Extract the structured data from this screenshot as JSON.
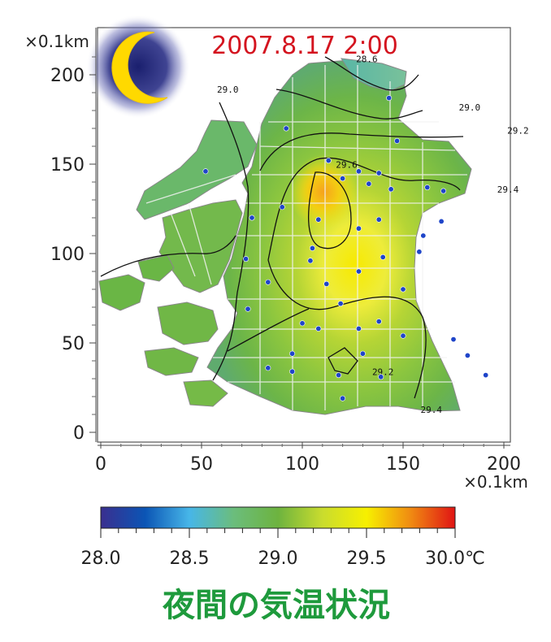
{
  "chart_data": {
    "type": "heatmap",
    "timestamp": "2007.8.17 2:00",
    "caption": "夜間の気温状況",
    "x_unit": "×0.1km",
    "y_unit": "×0.1km",
    "xlim": [
      0,
      200
    ],
    "ylim": [
      0,
      220
    ],
    "x_ticks": [
      0,
      50,
      100,
      150,
      200
    ],
    "y_ticks": [
      0,
      50,
      100,
      150,
      200
    ],
    "colorbar": {
      "min": 28.0,
      "max": 30.0,
      "unit": "℃",
      "ticks": [
        "28.0",
        "28.5",
        "29.0",
        "29.5",
        "30.0"
      ],
      "colors": [
        "#3a2f8f",
        "#0b55b5",
        "#47b6e8",
        "#6bbd7c",
        "#6db33f",
        "#c9dc2e",
        "#f7f000",
        "#f08a12",
        "#e01414"
      ]
    },
    "contours": [
      {
        "label": "28.6",
        "value": 28.6,
        "label_at": [
          132,
          207
        ]
      },
      {
        "label": "29.0",
        "value": 29.0,
        "label_at": [
          63,
          190
        ]
      },
      {
        "label": "29.0",
        "value": 29.0,
        "label_at": [
          183,
          180
        ]
      },
      {
        "label": "29.2",
        "value": 29.2,
        "label_at": [
          207,
          167
        ]
      },
      {
        "label": "29.6",
        "value": 29.6,
        "label_at": [
          122,
          148
        ]
      },
      {
        "label": "29.4",
        "value": 29.4,
        "label_at": [
          202,
          134
        ]
      },
      {
        "label": "29.2",
        "value": 29.2,
        "label_at": [
          140,
          32
        ]
      },
      {
        "label": "29.4",
        "value": 29.4,
        "label_at": [
          164,
          11
        ]
      }
    ],
    "stations": [
      [
        143,
        187
      ],
      [
        92,
        170
      ],
      [
        147,
        163
      ],
      [
        52,
        146
      ],
      [
        113,
        152
      ],
      [
        138,
        145
      ],
      [
        128,
        146
      ],
      [
        120,
        142
      ],
      [
        133,
        139
      ],
      [
        144,
        136
      ],
      [
        162,
        137
      ],
      [
        170,
        135
      ],
      [
        90,
        126
      ],
      [
        108,
        119
      ],
      [
        138,
        119
      ],
      [
        169,
        118
      ],
      [
        128,
        114
      ],
      [
        160,
        110
      ],
      [
        75,
        120
      ],
      [
        105,
        103
      ],
      [
        140,
        98
      ],
      [
        104,
        96
      ],
      [
        128,
        90
      ],
      [
        158,
        101
      ],
      [
        72,
        97
      ],
      [
        83,
        84
      ],
      [
        112,
        83
      ],
      [
        150,
        80
      ],
      [
        119,
        72
      ],
      [
        73,
        69
      ],
      [
        100,
        61
      ],
      [
        138,
        62
      ],
      [
        108,
        58
      ],
      [
        128,
        58
      ],
      [
        150,
        54
      ],
      [
        175,
        52
      ],
      [
        95,
        44
      ],
      [
        130,
        44
      ],
      [
        182,
        43
      ],
      [
        95,
        34
      ],
      [
        118,
        32
      ],
      [
        139,
        31
      ],
      [
        83,
        36
      ],
      [
        191,
        32
      ],
      [
        120,
        19
      ]
    ]
  }
}
